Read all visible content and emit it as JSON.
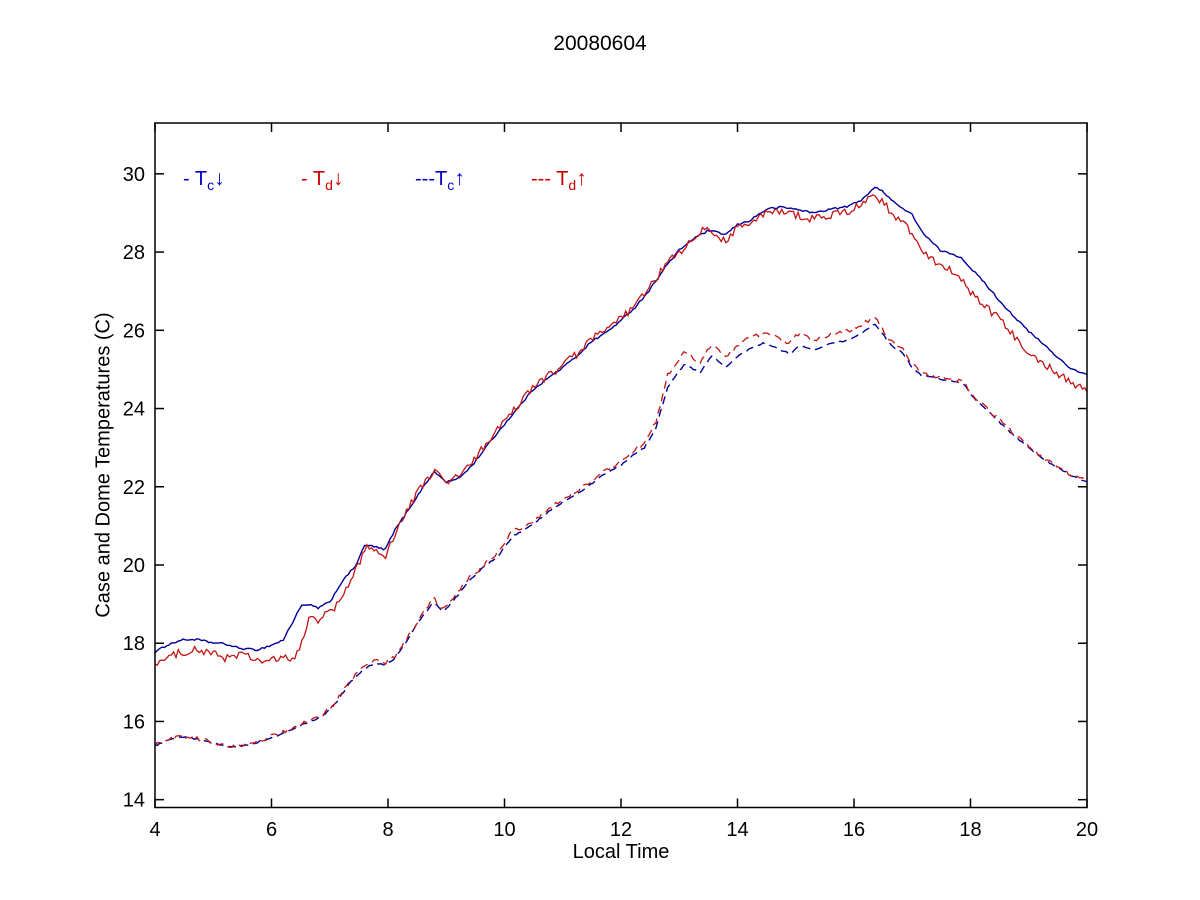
{
  "chart_data": {
    "type": "line",
    "title": "20080604",
    "xlabel": "Local Time",
    "ylabel": "Case and Dome Temperatures (C)",
    "xlim": [
      4,
      20
    ],
    "ylim": [
      13.8,
      31.3
    ],
    "xticks": [
      4,
      6,
      8,
      10,
      12,
      14,
      16,
      18,
      20
    ],
    "yticks": [
      14,
      16,
      18,
      20,
      22,
      24,
      26,
      28,
      30
    ],
    "grid": false,
    "legend_position": "inside-top-left",
    "legend": [
      {
        "prefix": "- ",
        "symbol": "T",
        "sub": "c",
        "arrow": "↓",
        "color": "#0000CC",
        "line_style": "solid",
        "offset": 0
      },
      {
        "prefix": "- ",
        "symbol": "T",
        "sub": "d",
        "arrow": "↓",
        "color": "#CC0000",
        "line_style": "solid",
        "offset": 118
      },
      {
        "prefix": "---",
        "symbol": "T",
        "sub": "c",
        "arrow": "↑",
        "color": "#0000CC",
        "line_style": "dashed",
        "offset": 232
      },
      {
        "prefix": "--- ",
        "symbol": "T",
        "sub": "d",
        "arrow": "↑",
        "color": "#CC0000",
        "line_style": "dashed",
        "offset": 348
      }
    ],
    "series": [
      {
        "name": "Tc↓",
        "color": "#000099",
        "style": "solid",
        "width": 1.4,
        "noise": 0.025,
        "points": [
          [
            4,
            17.77
          ],
          [
            4.2,
            17.95
          ],
          [
            4.45,
            18.08
          ],
          [
            4.7,
            18.1
          ],
          [
            4.95,
            18.02
          ],
          [
            5.2,
            17.98
          ],
          [
            5.45,
            17.87
          ],
          [
            5.75,
            17.83
          ],
          [
            6,
            17.95
          ],
          [
            6.2,
            18.08
          ],
          [
            6.35,
            18.5
          ],
          [
            6.5,
            18.95
          ],
          [
            6.65,
            18.98
          ],
          [
            6.8,
            18.9
          ],
          [
            7,
            19.05
          ],
          [
            7.2,
            19.55
          ],
          [
            7.45,
            20
          ],
          [
            7.6,
            20.5
          ],
          [
            7.75,
            20.48
          ],
          [
            7.95,
            20.38
          ],
          [
            8.1,
            20.85
          ],
          [
            8.3,
            21.3
          ],
          [
            8.5,
            21.75
          ],
          [
            8.65,
            22.1
          ],
          [
            8.8,
            22.38
          ],
          [
            9,
            22.12
          ],
          [
            9.2,
            22.2
          ],
          [
            9.45,
            22.55
          ],
          [
            9.7,
            23.05
          ],
          [
            10,
            23.6
          ],
          [
            10.25,
            24.05
          ],
          [
            10.5,
            24.5
          ],
          [
            10.75,
            24.78
          ],
          [
            11,
            25.05
          ],
          [
            11.25,
            25.35
          ],
          [
            11.5,
            25.72
          ],
          [
            11.75,
            25.95
          ],
          [
            12,
            26.25
          ],
          [
            12.25,
            26.6
          ],
          [
            12.5,
            27.05
          ],
          [
            12.75,
            27.6
          ],
          [
            13,
            28.05
          ],
          [
            13.25,
            28.35
          ],
          [
            13.5,
            28.55
          ],
          [
            13.65,
            28.5
          ],
          [
            13.8,
            28.45
          ],
          [
            14,
            28.7
          ],
          [
            14.2,
            28.8
          ],
          [
            14.5,
            29.1
          ],
          [
            14.75,
            29.15
          ],
          [
            15,
            29.1
          ],
          [
            15.3,
            29
          ],
          [
            15.6,
            29.1
          ],
          [
            15.85,
            29.15
          ],
          [
            16.1,
            29.3
          ],
          [
            16.35,
            29.65
          ],
          [
            16.5,
            29.55
          ],
          [
            16.75,
            29.2
          ],
          [
            17,
            28.95
          ],
          [
            17.2,
            28.45
          ],
          [
            17.5,
            28.02
          ],
          [
            17.7,
            27.95
          ],
          [
            17.85,
            27.85
          ],
          [
            18,
            27.6
          ],
          [
            18.25,
            27.2
          ],
          [
            18.5,
            26.75
          ],
          [
            18.75,
            26.35
          ],
          [
            19,
            25.97
          ],
          [
            19.25,
            25.65
          ],
          [
            19.5,
            25.3
          ],
          [
            19.75,
            25
          ],
          [
            20,
            24.85
          ]
        ]
      },
      {
        "name": "Td↓",
        "color": "#C41414",
        "style": "solid",
        "width": 1.3,
        "noise": 0.1,
        "points": [
          [
            4,
            17.5
          ],
          [
            4.2,
            17.6
          ],
          [
            4.45,
            17.78
          ],
          [
            4.7,
            17.82
          ],
          [
            4.95,
            17.75
          ],
          [
            5.2,
            17.63
          ],
          [
            5.5,
            17.72
          ],
          [
            5.75,
            17.55
          ],
          [
            6,
            17.55
          ],
          [
            6.2,
            17.62
          ],
          [
            6.4,
            17.6
          ],
          [
            6.55,
            18.1
          ],
          [
            6.65,
            18.72
          ],
          [
            6.8,
            18.6
          ],
          [
            6.95,
            18.75
          ],
          [
            7.15,
            19
          ],
          [
            7.35,
            19.55
          ],
          [
            7.55,
            20.2
          ],
          [
            7.65,
            20.55
          ],
          [
            7.8,
            20.3
          ],
          [
            7.95,
            20.22
          ],
          [
            8.1,
            20.75
          ],
          [
            8.3,
            21.3
          ],
          [
            8.5,
            21.85
          ],
          [
            8.65,
            22.15
          ],
          [
            8.8,
            22.42
          ],
          [
            9,
            22.08
          ],
          [
            9.2,
            22.28
          ],
          [
            9.45,
            22.6
          ],
          [
            9.7,
            23.15
          ],
          [
            10,
            23.65
          ],
          [
            10.25,
            24.12
          ],
          [
            10.5,
            24.55
          ],
          [
            10.75,
            24.85
          ],
          [
            11,
            25.1
          ],
          [
            11.25,
            25.4
          ],
          [
            11.5,
            25.78
          ],
          [
            11.75,
            26
          ],
          [
            12,
            26.3
          ],
          [
            12.25,
            26.65
          ],
          [
            12.5,
            27.1
          ],
          [
            12.75,
            27.65
          ],
          [
            13,
            28
          ],
          [
            13.25,
            28.3
          ],
          [
            13.47,
            28.65
          ],
          [
            13.65,
            28.4
          ],
          [
            13.8,
            28.3
          ],
          [
            14,
            28.65
          ],
          [
            14.2,
            28.7
          ],
          [
            14.5,
            29
          ],
          [
            14.75,
            29.05
          ],
          [
            15,
            28.95
          ],
          [
            15.3,
            28.85
          ],
          [
            15.6,
            28.95
          ],
          [
            15.85,
            29
          ],
          [
            16.1,
            29.2
          ],
          [
            16.35,
            29.5
          ],
          [
            16.5,
            29.25
          ],
          [
            16.75,
            28.85
          ],
          [
            17,
            28.5
          ],
          [
            17.2,
            28
          ],
          [
            17.5,
            27.65
          ],
          [
            17.7,
            27.5
          ],
          [
            17.85,
            27.3
          ],
          [
            18,
            26.95
          ],
          [
            18.25,
            26.6
          ],
          [
            18.5,
            26.28
          ],
          [
            18.75,
            25.85
          ],
          [
            19,
            25.45
          ],
          [
            19.25,
            25.15
          ],
          [
            19.5,
            24.9
          ],
          [
            19.75,
            24.65
          ],
          [
            20,
            24.45
          ]
        ]
      },
      {
        "name": "Tc↑",
        "color": "#000099",
        "style": "dashed",
        "width": 1.4,
        "noise": 0.02,
        "points": [
          [
            4,
            15.38
          ],
          [
            4.2,
            15.5
          ],
          [
            4.45,
            15.6
          ],
          [
            4.7,
            15.55
          ],
          [
            5,
            15.45
          ],
          [
            5.3,
            15.33
          ],
          [
            5.6,
            15.4
          ],
          [
            6,
            15.58
          ],
          [
            6.3,
            15.75
          ],
          [
            6.6,
            15.96
          ],
          [
            6.85,
            16.1
          ],
          [
            7.1,
            16.45
          ],
          [
            7.35,
            17
          ],
          [
            7.6,
            17.35
          ],
          [
            7.8,
            17.5
          ],
          [
            7.95,
            17.45
          ],
          [
            8.1,
            17.58
          ],
          [
            8.3,
            18
          ],
          [
            8.5,
            18.5
          ],
          [
            8.65,
            18.8
          ],
          [
            8.78,
            19.05
          ],
          [
            8.95,
            18.8
          ],
          [
            9.1,
            19.05
          ],
          [
            9.4,
            19.6
          ],
          [
            9.65,
            19.95
          ],
          [
            9.9,
            20.25
          ],
          [
            10.15,
            20.75
          ],
          [
            10.3,
            20.85
          ],
          [
            10.5,
            21.05
          ],
          [
            10.8,
            21.42
          ],
          [
            11.1,
            21.7
          ],
          [
            11.43,
            22
          ],
          [
            11.7,
            22.3
          ],
          [
            12,
            22.55
          ],
          [
            12.2,
            22.8
          ],
          [
            12.4,
            23
          ],
          [
            12.6,
            23.5
          ],
          [
            12.8,
            24.55
          ],
          [
            13.1,
            25.15
          ],
          [
            13.35,
            24.9
          ],
          [
            13.55,
            25.35
          ],
          [
            13.8,
            25.05
          ],
          [
            14.1,
            25.45
          ],
          [
            14.45,
            25.67
          ],
          [
            14.9,
            25.4
          ],
          [
            15.05,
            25.6
          ],
          [
            15.3,
            25.5
          ],
          [
            15.6,
            25.65
          ],
          [
            15.9,
            25.75
          ],
          [
            16.1,
            25.9
          ],
          [
            16.35,
            26.15
          ],
          [
            16.5,
            25.9
          ],
          [
            16.65,
            25.6
          ],
          [
            16.85,
            25.4
          ],
          [
            17,
            25.05
          ],
          [
            17.15,
            24.85
          ],
          [
            17.4,
            24.78
          ],
          [
            17.7,
            24.7
          ],
          [
            17.9,
            24.6
          ],
          [
            18,
            24.35
          ],
          [
            18.25,
            24
          ],
          [
            18.5,
            23.65
          ],
          [
            18.75,
            23.3
          ],
          [
            19,
            23
          ],
          [
            19.25,
            22.72
          ],
          [
            19.5,
            22.48
          ],
          [
            19.75,
            22.28
          ],
          [
            20,
            22.12
          ]
        ]
      },
      {
        "name": "Td↑",
        "color": "#C41414",
        "style": "dashed",
        "width": 1.3,
        "noise": 0.05,
        "points": [
          [
            4,
            15.4
          ],
          [
            4.2,
            15.52
          ],
          [
            4.45,
            15.62
          ],
          [
            4.7,
            15.57
          ],
          [
            5,
            15.47
          ],
          [
            5.3,
            15.35
          ],
          [
            5.6,
            15.42
          ],
          [
            6,
            15.62
          ],
          [
            6.3,
            15.78
          ],
          [
            6.6,
            16
          ],
          [
            6.85,
            16.13
          ],
          [
            7.1,
            16.5
          ],
          [
            7.35,
            17.05
          ],
          [
            7.6,
            17.4
          ],
          [
            7.8,
            17.57
          ],
          [
            7.95,
            17.5
          ],
          [
            8.1,
            17.63
          ],
          [
            8.3,
            18.06
          ],
          [
            8.5,
            18.55
          ],
          [
            8.65,
            18.88
          ],
          [
            8.78,
            19.15
          ],
          [
            8.95,
            18.88
          ],
          [
            9.1,
            19.12
          ],
          [
            9.4,
            19.68
          ],
          [
            9.65,
            20
          ],
          [
            9.9,
            20.33
          ],
          [
            10.15,
            20.9
          ],
          [
            10.3,
            20.95
          ],
          [
            10.5,
            21.12
          ],
          [
            10.8,
            21.5
          ],
          [
            11.1,
            21.78
          ],
          [
            11.43,
            22.08
          ],
          [
            11.7,
            22.38
          ],
          [
            12,
            22.65
          ],
          [
            12.2,
            22.9
          ],
          [
            12.4,
            23.1
          ],
          [
            12.6,
            23.65
          ],
          [
            12.8,
            24.85
          ],
          [
            13.1,
            25.45
          ],
          [
            13.35,
            25.15
          ],
          [
            13.55,
            25.62
          ],
          [
            13.8,
            25.32
          ],
          [
            14.1,
            25.72
          ],
          [
            14.45,
            25.95
          ],
          [
            14.9,
            25.67
          ],
          [
            15.05,
            25.92
          ],
          [
            15.3,
            25.75
          ],
          [
            15.6,
            25.9
          ],
          [
            15.9,
            26
          ],
          [
            16.1,
            26.1
          ],
          [
            16.35,
            26.36
          ],
          [
            16.5,
            26
          ],
          [
            16.65,
            25.7
          ],
          [
            16.85,
            25.5
          ],
          [
            17,
            25.15
          ],
          [
            17.15,
            24.9
          ],
          [
            17.4,
            24.82
          ],
          [
            17.7,
            24.75
          ],
          [
            17.9,
            24.65
          ],
          [
            18,
            24.4
          ],
          [
            18.25,
            24.05
          ],
          [
            18.5,
            23.7
          ],
          [
            18.75,
            23.35
          ],
          [
            19,
            23.02
          ],
          [
            19.25,
            22.75
          ],
          [
            19.5,
            22.5
          ],
          [
            19.75,
            22.3
          ],
          [
            20,
            22.14
          ]
        ]
      }
    ]
  }
}
